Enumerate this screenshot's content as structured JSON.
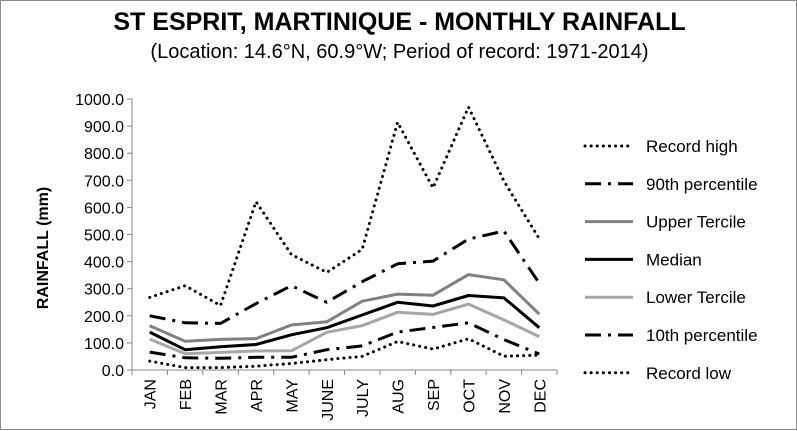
{
  "chart_data": {
    "type": "line",
    "title": "ST ESPRIT, MARTINIQUE - MONTHLY RAINFALL",
    "subtitle": "(Location: 14.6°N, 60.9°W; Period of record: 1971-2014)",
    "xlabel": "",
    "ylabel": "RAINFALL (mm)",
    "ylim": [
      0,
      1000
    ],
    "yticks": [
      "0.0",
      "100.0",
      "200.0",
      "300.0",
      "400.0",
      "500.0",
      "600.0",
      "700.0",
      "800.0",
      "900.0",
      "1000.0"
    ],
    "categories": [
      "JAN",
      "FEB",
      "MAR",
      "APR",
      "MAY",
      "JUNE",
      "JULY",
      "AUG",
      "SEP",
      "OCT",
      "NOV",
      "DEC"
    ],
    "grid": false,
    "legend_position": "right",
    "series": [
      {
        "name": "Record high",
        "style": "dotted",
        "color": "#000000",
        "values": [
          268,
          311,
          238,
          621,
          426,
          360,
          445,
          914,
          672,
          970,
          697,
          484
        ]
      },
      {
        "name": "90th percentile",
        "style": "dashdot",
        "color": "#000000",
        "values": [
          200,
          174,
          172,
          245,
          311,
          250,
          326,
          392,
          402,
          483,
          513,
          320
        ]
      },
      {
        "name": "Upper Tercile",
        "style": "solid",
        "color": "#808080",
        "values": [
          163,
          106,
          113,
          116,
          166,
          178,
          254,
          280,
          276,
          352,
          333,
          206
        ]
      },
      {
        "name": "Median",
        "style": "solid",
        "color": "#000000",
        "values": [
          140,
          75,
          86,
          94,
          130,
          156,
          203,
          250,
          236,
          275,
          266,
          156
        ]
      },
      {
        "name": "Lower Tercile",
        "style": "solid",
        "color": "#a6a6a6",
        "values": [
          114,
          60,
          65,
          70,
          71,
          139,
          164,
          213,
          205,
          243,
          185,
          123
        ]
      },
      {
        "name": "10th percentile",
        "style": "dashdot",
        "color": "#000000",
        "values": [
          66,
          45,
          43,
          47,
          47,
          75,
          89,
          140,
          157,
          174,
          112,
          59
        ]
      },
      {
        "name": "Record low",
        "style": "dotted",
        "color": "#000000",
        "values": [
          33,
          9,
          9,
          14,
          24,
          38,
          50,
          105,
          77,
          115,
          51,
          55
        ]
      }
    ]
  }
}
